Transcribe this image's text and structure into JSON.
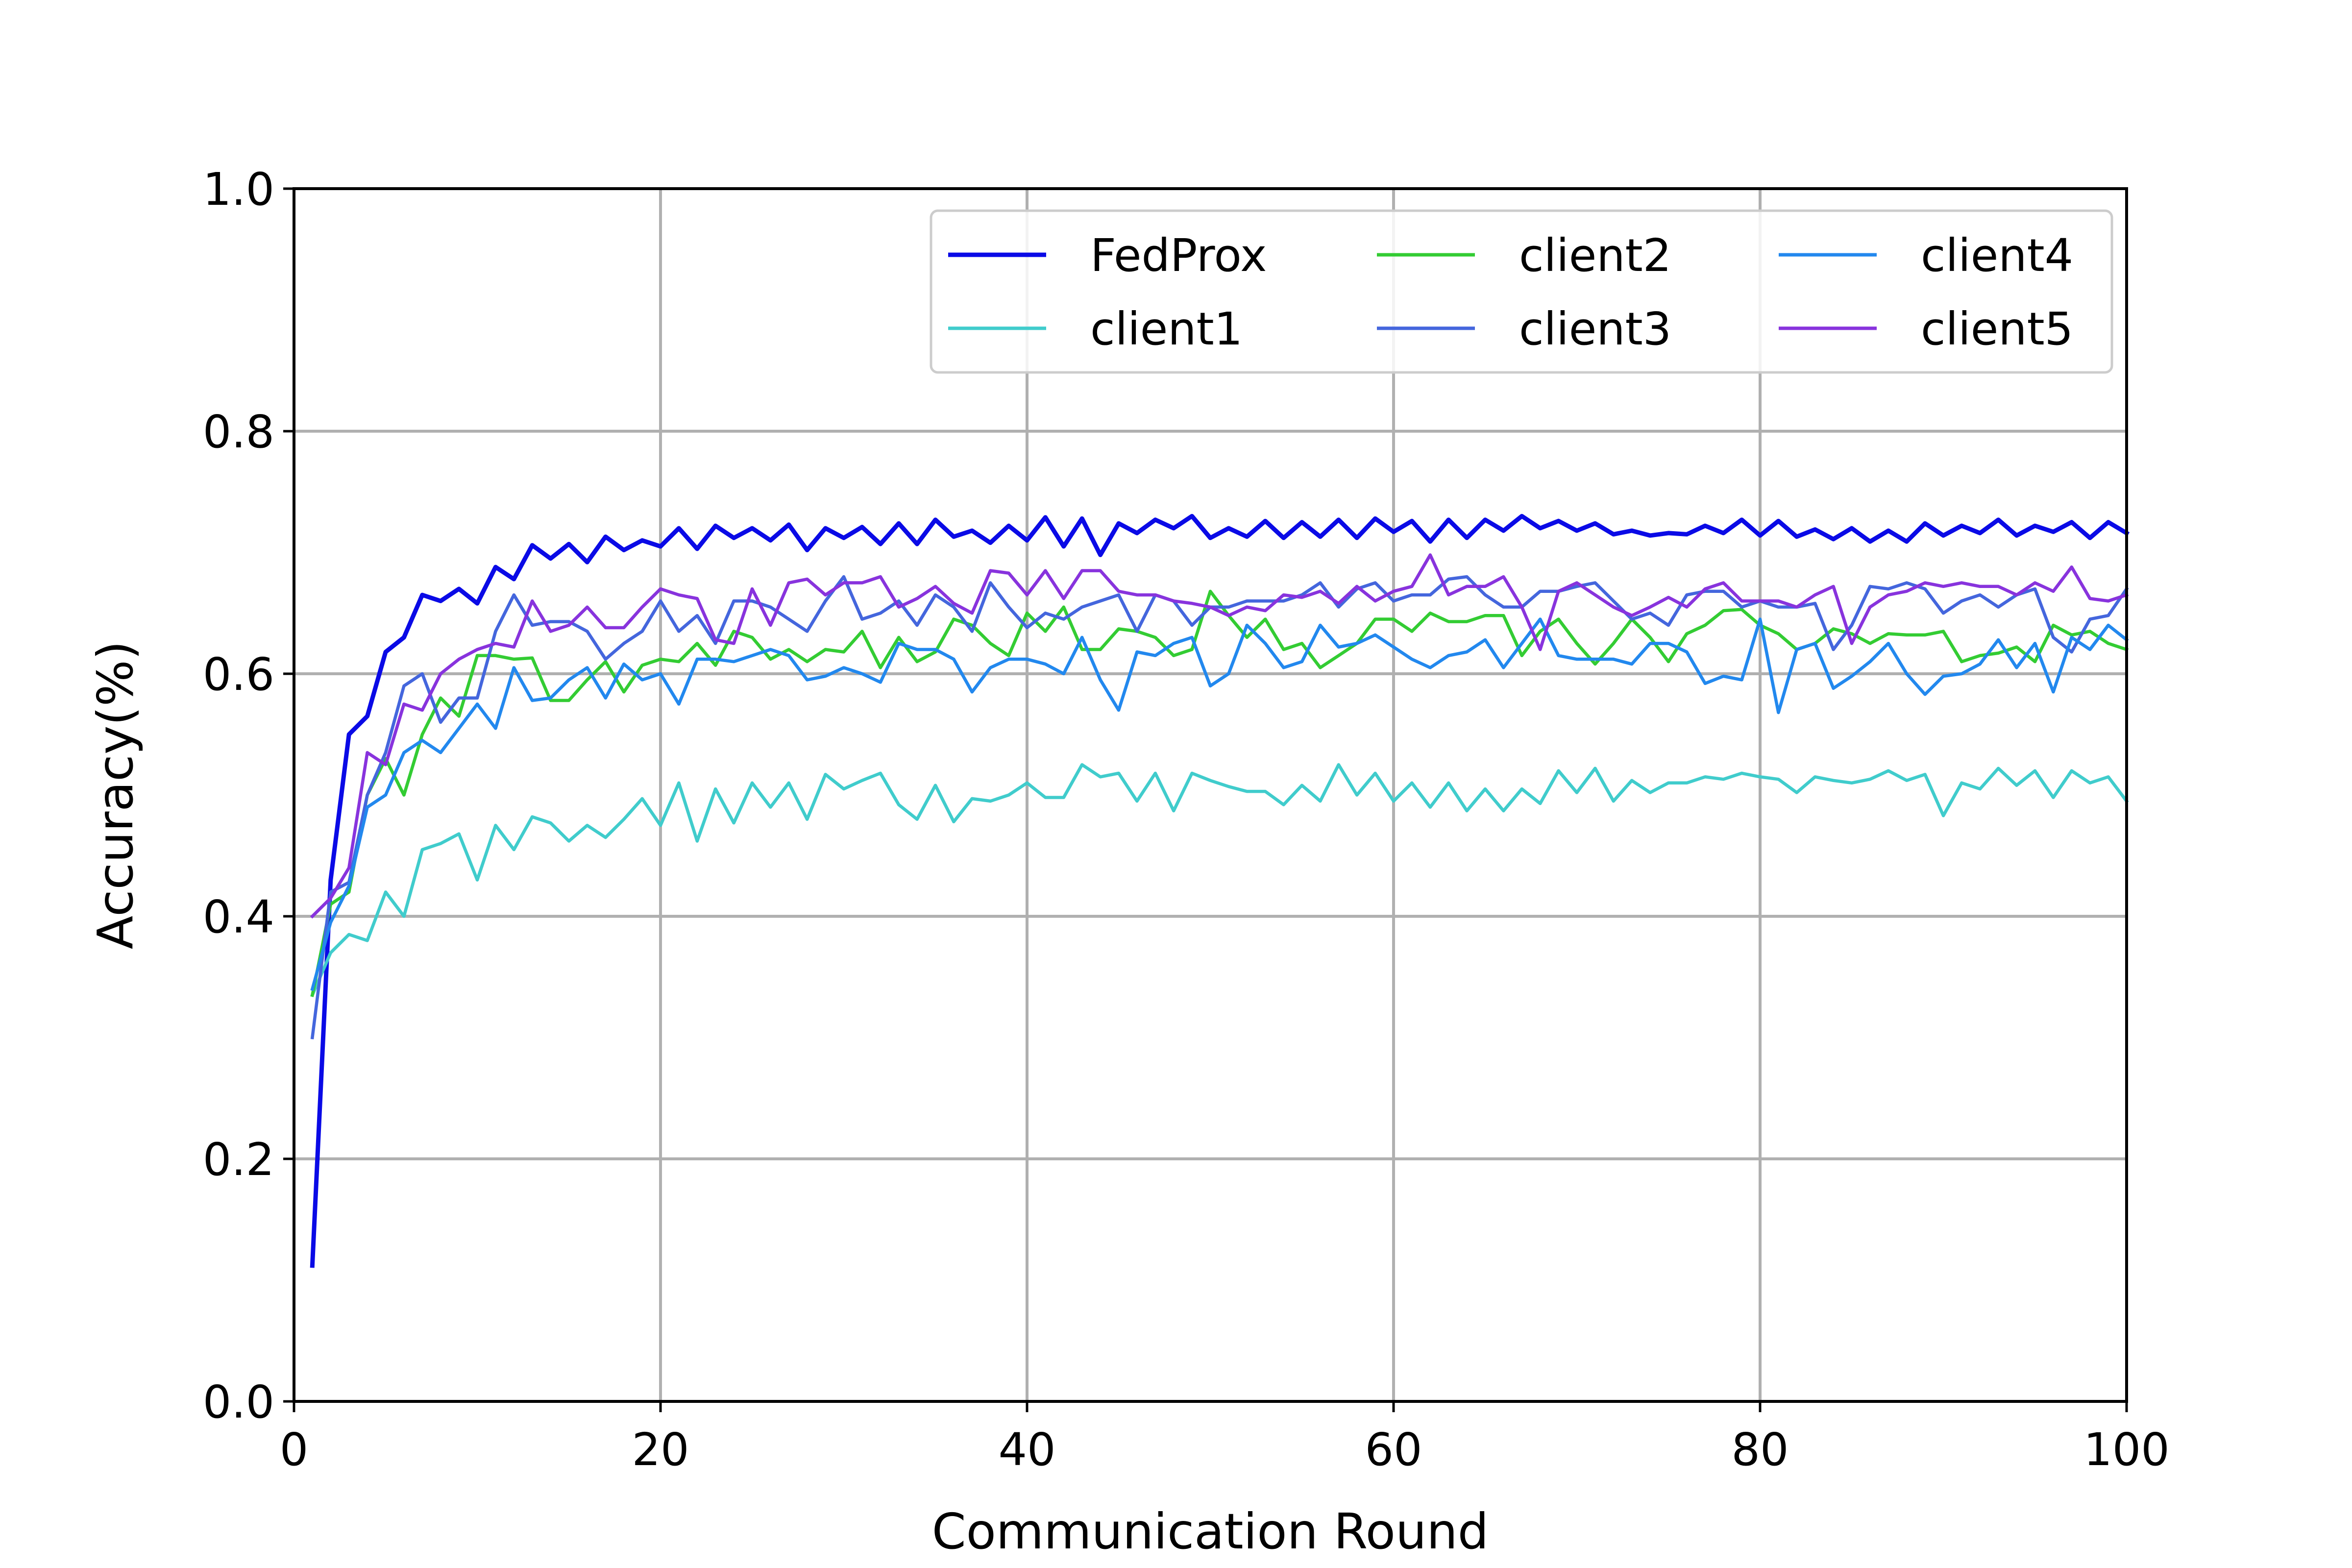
{
  "chart_data": {
    "type": "line",
    "xlabel": "Communication Round",
    "ylabel": "Accuracy(%)",
    "xlim": [
      0,
      100
    ],
    "ylim": [
      0.0,
      1.0
    ],
    "xticks": [
      "0",
      "20",
      "40",
      "60",
      "80",
      "100"
    ],
    "yticks": [
      "0.0",
      "0.2",
      "0.4",
      "0.6",
      "0.8",
      "1.0"
    ],
    "grid": true,
    "legend_position": "top-right",
    "legend_columns": 3,
    "x": [
      1,
      2,
      3,
      4,
      5,
      6,
      7,
      8,
      9,
      10,
      11,
      12,
      13,
      14,
      15,
      16,
      17,
      18,
      19,
      20,
      21,
      22,
      23,
      24,
      25,
      26,
      27,
      28,
      29,
      30,
      31,
      32,
      33,
      34,
      35,
      36,
      37,
      38,
      39,
      40,
      41,
      42,
      43,
      44,
      45,
      46,
      47,
      48,
      49,
      50,
      51,
      52,
      53,
      54,
      55,
      56,
      57,
      58,
      59,
      60,
      61,
      62,
      63,
      64,
      65,
      66,
      67,
      68,
      69,
      70,
      71,
      72,
      73,
      74,
      75,
      76,
      77,
      78,
      79,
      80,
      81,
      82,
      83,
      84,
      85,
      86,
      87,
      88,
      89,
      90,
      91,
      92,
      93,
      94,
      95,
      96,
      97,
      98,
      99,
      100
    ],
    "series": [
      {
        "name": "FedProx",
        "color": "#0a0ae6",
        "values": [
          0.112,
          0.43,
          0.55,
          0.565,
          0.618,
          0.63,
          0.665,
          0.66,
          0.67,
          0.658,
          0.688,
          0.678,
          0.706,
          0.695,
          0.707,
          0.692,
          0.713,
          0.702,
          0.71,
          0.705,
          0.72,
          0.703,
          0.722,
          0.712,
          0.72,
          0.71,
          0.723,
          0.702,
          0.72,
          0.712,
          0.721,
          0.707,
          0.724,
          0.707,
          0.727,
          0.713,
          0.718,
          0.708,
          0.722,
          0.71,
          0.729,
          0.705,
          0.728,
          0.698,
          0.724,
          0.716,
          0.727,
          0.72,
          0.73,
          0.712,
          0.72,
          0.713,
          0.726,
          0.712,
          0.725,
          0.713,
          0.727,
          0.712,
          0.728,
          0.717,
          0.726,
          0.709,
          0.727,
          0.712,
          0.727,
          0.718,
          0.73,
          0.72,
          0.726,
          0.718,
          0.724,
          0.715,
          0.718,
          0.714,
          0.716,
          0.715,
          0.722,
          0.716,
          0.727,
          0.714,
          0.726,
          0.713,
          0.719,
          0.711,
          0.72,
          0.709,
          0.718,
          0.709,
          0.724,
          0.714,
          0.722,
          0.716,
          0.727,
          0.714,
          0.722,
          0.717,
          0.725,
          0.712,
          0.725,
          0.716
        ]
      },
      {
        "name": "client1",
        "color": "#40cccc",
        "values": [
          0.335,
          0.37,
          0.385,
          0.38,
          0.42,
          0.4,
          0.455,
          0.46,
          0.468,
          0.43,
          0.475,
          0.455,
          0.482,
          0.477,
          0.462,
          0.475,
          0.465,
          0.48,
          0.497,
          0.475,
          0.51,
          0.462,
          0.505,
          0.477,
          0.51,
          0.49,
          0.51,
          0.48,
          0.517,
          0.505,
          0.512,
          0.518,
          0.492,
          0.48,
          0.508,
          0.478,
          0.497,
          0.495,
          0.5,
          0.51,
          0.498,
          0.498,
          0.525,
          0.515,
          0.518,
          0.495,
          0.518,
          0.487,
          0.518,
          0.512,
          0.507,
          0.503,
          0.503,
          0.492,
          0.508,
          0.495,
          0.525,
          0.5,
          0.518,
          0.495,
          0.51,
          0.49,
          0.51,
          0.487,
          0.505,
          0.487,
          0.505,
          0.493,
          0.52,
          0.502,
          0.522,
          0.495,
          0.512,
          0.502,
          0.51,
          0.51,
          0.515,
          0.513,
          0.518,
          0.515,
          0.513,
          0.502,
          0.515,
          0.512,
          0.51,
          0.513,
          0.52,
          0.512,
          0.517,
          0.483,
          0.51,
          0.505,
          0.522,
          0.508,
          0.52,
          0.498,
          0.52,
          0.51,
          0.515,
          0.495
        ]
      },
      {
        "name": "client2",
        "color": "#33cc33",
        "values": [
          0.335,
          0.41,
          0.42,
          0.5,
          0.53,
          0.5,
          0.55,
          0.58,
          0.565,
          0.615,
          0.615,
          0.612,
          0.613,
          0.578,
          0.578,
          0.595,
          0.61,
          0.585,
          0.607,
          0.612,
          0.61,
          0.625,
          0.607,
          0.635,
          0.63,
          0.612,
          0.62,
          0.61,
          0.62,
          0.618,
          0.635,
          0.605,
          0.63,
          0.61,
          0.618,
          0.645,
          0.64,
          0.625,
          0.615,
          0.65,
          0.635,
          0.655,
          0.62,
          0.62,
          0.637,
          0.635,
          0.63,
          0.615,
          0.62,
          0.668,
          0.648,
          0.63,
          0.645,
          0.62,
          0.625,
          0.605,
          0.615,
          0.625,
          0.645,
          0.645,
          0.635,
          0.65,
          0.643,
          0.643,
          0.648,
          0.648,
          0.615,
          0.635,
          0.645,
          0.625,
          0.608,
          0.625,
          0.645,
          0.63,
          0.61,
          0.633,
          0.64,
          0.652,
          0.653,
          0.64,
          0.633,
          0.62,
          0.625,
          0.637,
          0.633,
          0.625,
          0.633,
          0.632,
          0.632,
          0.635,
          0.61,
          0.615,
          0.617,
          0.622,
          0.61,
          0.64,
          0.632,
          0.635,
          0.625,
          0.62
        ]
      },
      {
        "name": "client3",
        "color": "#4466dd",
        "values": [
          0.3,
          0.42,
          0.428,
          0.5,
          0.535,
          0.59,
          0.6,
          0.56,
          0.58,
          0.58,
          0.635,
          0.665,
          0.64,
          0.643,
          0.643,
          0.635,
          0.612,
          0.625,
          0.635,
          0.66,
          0.635,
          0.648,
          0.625,
          0.66,
          0.66,
          0.655,
          0.645,
          0.635,
          0.66,
          0.68,
          0.645,
          0.65,
          0.66,
          0.64,
          0.665,
          0.655,
          0.635,
          0.675,
          0.655,
          0.638,
          0.65,
          0.645,
          0.655,
          0.66,
          0.665,
          0.635,
          0.665,
          0.66,
          0.64,
          0.655,
          0.655,
          0.66,
          0.66,
          0.66,
          0.665,
          0.675,
          0.655,
          0.67,
          0.675,
          0.66,
          0.665,
          0.665,
          0.678,
          0.68,
          0.665,
          0.655,
          0.655,
          0.668,
          0.668,
          0.672,
          0.675,
          0.66,
          0.645,
          0.65,
          0.64,
          0.665,
          0.668,
          0.668,
          0.655,
          0.66,
          0.655,
          0.655,
          0.658,
          0.62,
          0.64,
          0.672,
          0.67,
          0.675,
          0.67,
          0.65,
          0.66,
          0.665,
          0.655,
          0.665,
          0.67,
          0.63,
          0.618,
          0.645,
          0.648,
          0.67
        ]
      },
      {
        "name": "client4",
        "color": "#2288ee",
        "values": [
          0.34,
          0.395,
          0.425,
          0.49,
          0.5,
          0.535,
          0.545,
          0.535,
          0.555,
          0.575,
          0.555,
          0.605,
          0.578,
          0.58,
          0.595,
          0.605,
          0.58,
          0.608,
          0.595,
          0.6,
          0.575,
          0.612,
          0.612,
          0.61,
          0.615,
          0.62,
          0.615,
          0.595,
          0.598,
          0.605,
          0.6,
          0.593,
          0.625,
          0.62,
          0.62,
          0.612,
          0.585,
          0.605,
          0.612,
          0.612,
          0.608,
          0.6,
          0.63,
          0.595,
          0.57,
          0.618,
          0.615,
          0.625,
          0.63,
          0.59,
          0.6,
          0.64,
          0.625,
          0.605,
          0.61,
          0.64,
          0.622,
          0.625,
          0.632,
          0.622,
          0.612,
          0.605,
          0.615,
          0.618,
          0.628,
          0.605,
          0.625,
          0.645,
          0.615,
          0.612,
          0.612,
          0.612,
          0.608,
          0.625,
          0.625,
          0.618,
          0.592,
          0.598,
          0.595,
          0.645,
          0.568,
          0.62,
          0.625,
          0.588,
          0.598,
          0.61,
          0.625,
          0.6,
          0.583,
          0.598,
          0.6,
          0.608,
          0.628,
          0.605,
          0.625,
          0.585,
          0.63,
          0.62,
          0.64,
          0.628
        ]
      },
      {
        "name": "client5",
        "color": "#8833dd",
        "values": [
          0.4,
          0.415,
          0.44,
          0.535,
          0.525,
          0.575,
          0.57,
          0.6,
          0.612,
          0.62,
          0.625,
          0.622,
          0.66,
          0.635,
          0.64,
          0.655,
          0.638,
          0.638,
          0.655,
          0.67,
          0.665,
          0.662,
          0.628,
          0.625,
          0.67,
          0.64,
          0.675,
          0.678,
          0.665,
          0.675,
          0.675,
          0.68,
          0.655,
          0.662,
          0.672,
          0.658,
          0.65,
          0.685,
          0.683,
          0.665,
          0.685,
          0.662,
          0.685,
          0.685,
          0.668,
          0.665,
          0.665,
          0.66,
          0.658,
          0.655,
          0.648,
          0.655,
          0.652,
          0.665,
          0.663,
          0.668,
          0.658,
          0.672,
          0.66,
          0.668,
          0.672,
          0.698,
          0.665,
          0.672,
          0.672,
          0.68,
          0.655,
          0.62,
          0.668,
          0.675,
          0.665,
          0.655,
          0.648,
          0.655,
          0.663,
          0.655,
          0.67,
          0.675,
          0.66,
          0.66,
          0.66,
          0.655,
          0.665,
          0.672,
          0.625,
          0.655,
          0.665,
          0.668,
          0.675,
          0.672,
          0.675,
          0.672,
          0.672,
          0.665,
          0.675,
          0.668,
          0.688,
          0.662,
          0.66,
          0.665
        ]
      }
    ]
  }
}
